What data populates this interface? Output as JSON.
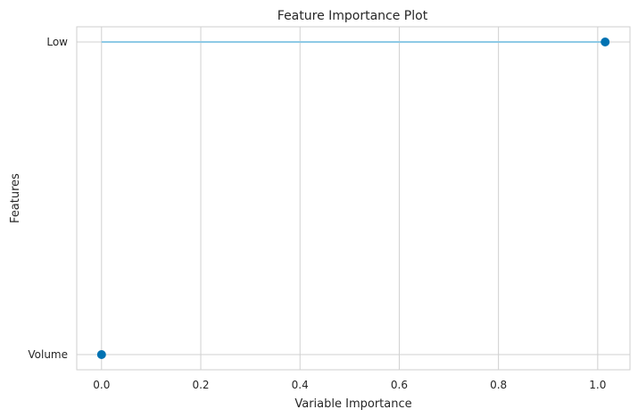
{
  "chart_data": {
    "type": "lollipop",
    "title": "Feature Importance Plot",
    "xlabel": "Variable Importance",
    "ylabel": "Features",
    "categories": [
      "Volume",
      "Low"
    ],
    "values": [
      0.0,
      1.015
    ],
    "xlim": [
      -0.05,
      1.065
    ],
    "xticks": [
      "0.0",
      "0.2",
      "0.4",
      "0.6",
      "0.8",
      "1.0"
    ],
    "grid": true,
    "legend": "none",
    "colors": {
      "stem": "#8ecae6",
      "marker": "#0072b2",
      "grid": "#d0d0d0",
      "spine": "#cfcfcf",
      "text": "#262626"
    }
  }
}
